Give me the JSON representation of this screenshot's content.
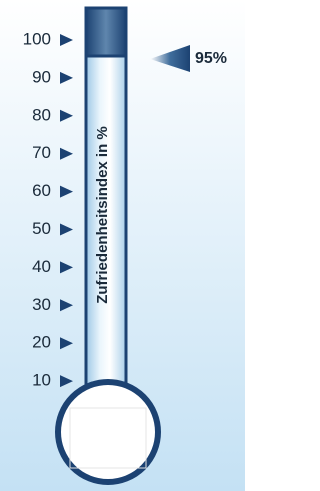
{
  "chart_data": {
    "type": "thermometer",
    "axis_label": "Zufriedenheitsindex in %",
    "values": [
      95
    ],
    "value_labels": [
      "95%"
    ],
    "ylim": [
      0,
      100
    ],
    "yticks": [
      10,
      20,
      30,
      40,
      50,
      60,
      70,
      80,
      90,
      100
    ],
    "color": "#1c4272"
  }
}
